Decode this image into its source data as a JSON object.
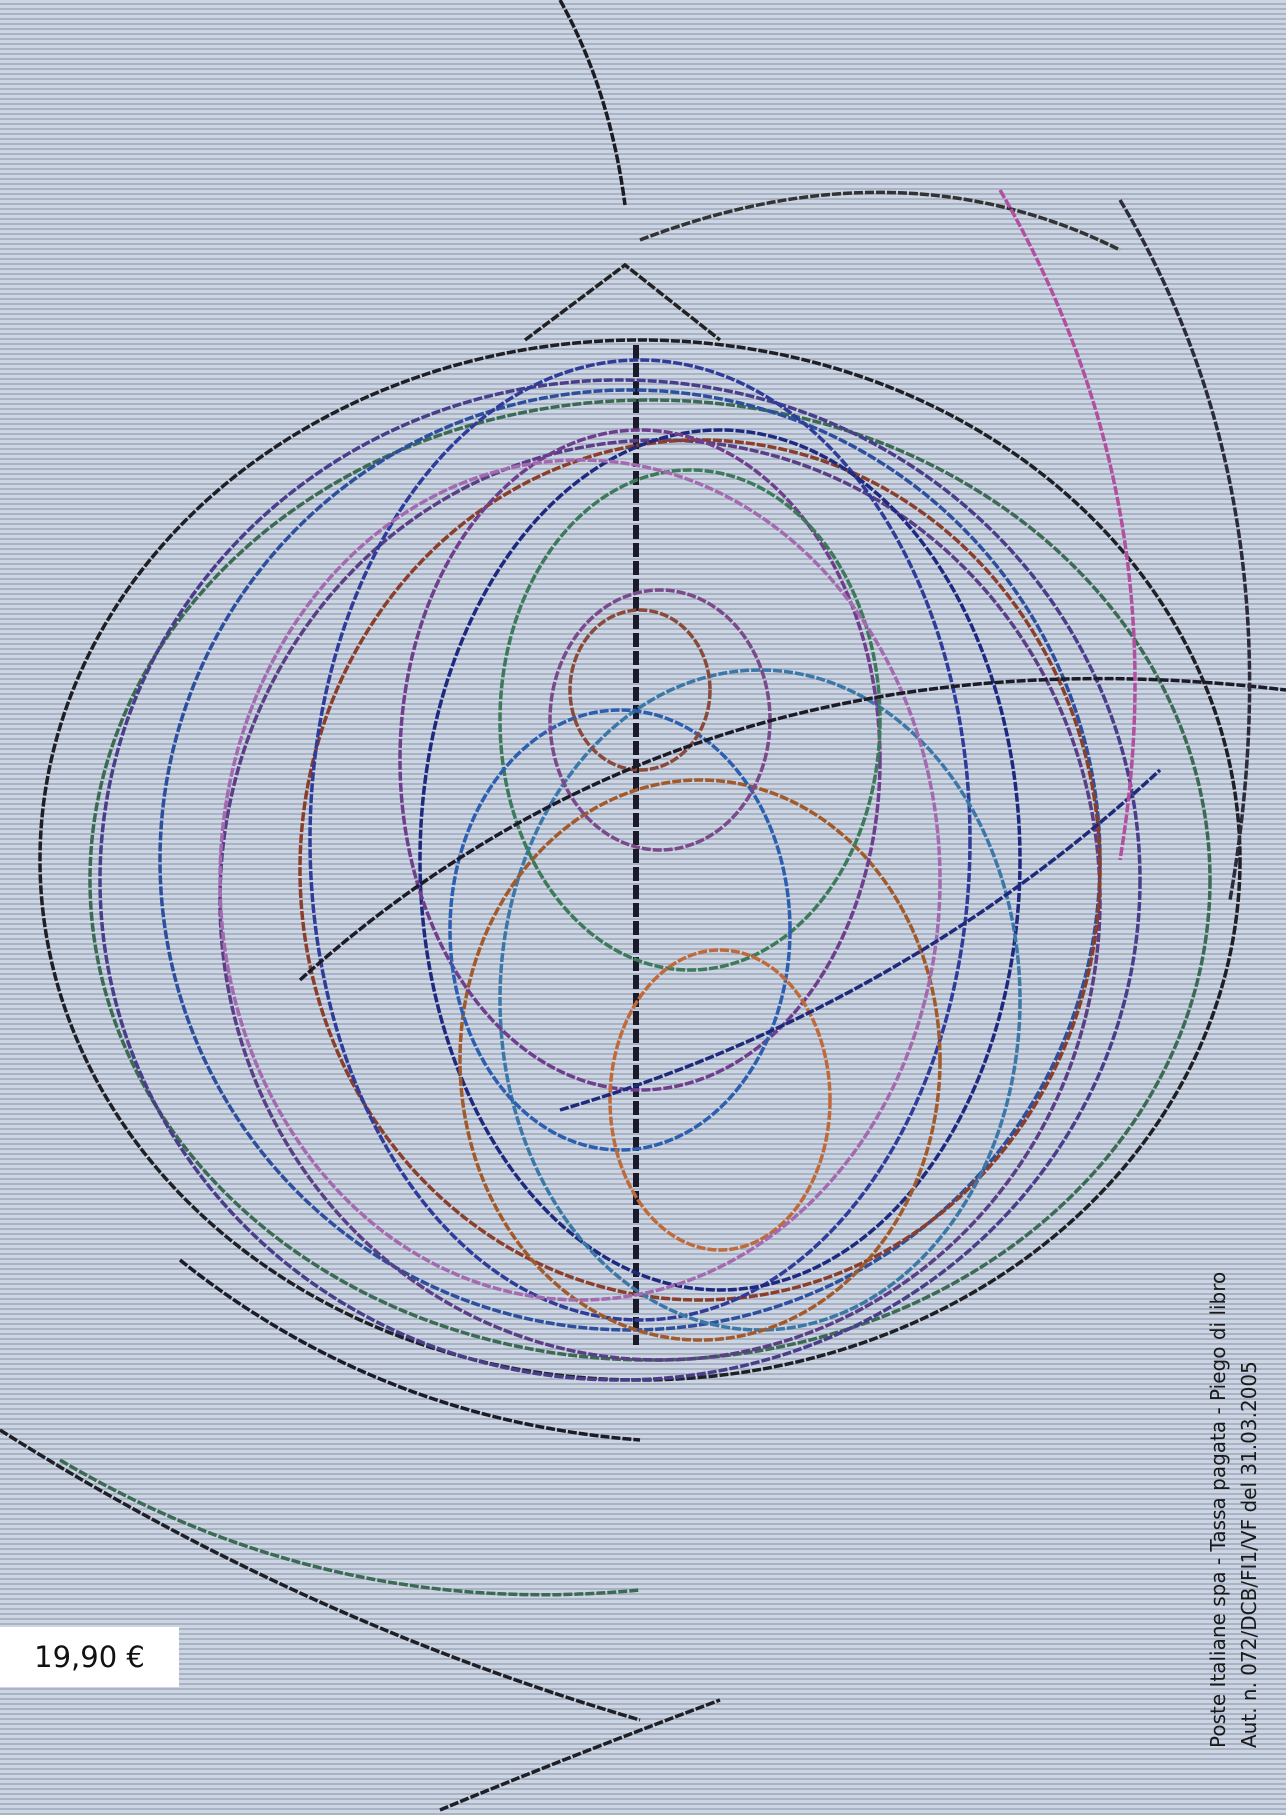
{
  "price": "19,90 €",
  "postal_notice": {
    "line1": "Poste Italiane spa - Tassa pagata - Piego di libro",
    "line2": "Aut. n. 072/DCB/FI1/VF del 31.03.2005"
  }
}
